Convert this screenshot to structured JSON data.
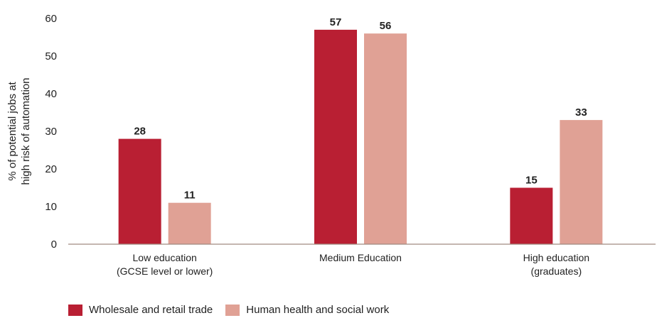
{
  "chart_data": {
    "type": "bar",
    "categories": [
      [
        "Low education",
        "(GCSE level or lower)"
      ],
      [
        "Medium Education"
      ],
      [
        "High education",
        "(graduates)"
      ]
    ],
    "series": [
      {
        "name": "Wholesale and retail trade",
        "color": "#b91f33",
        "values": [
          28,
          57,
          15
        ]
      },
      {
        "name": "Human health and social work",
        "color": "#e0a195",
        "values": [
          11,
          56,
          33
        ]
      }
    ],
    "ylabel": [
      "% of potential jobs at",
      "high risk of automation"
    ],
    "yticks": [
      0,
      10,
      20,
      30,
      40,
      50,
      60
    ],
    "ylim": [
      0,
      60
    ],
    "grid": false,
    "legend_position": "bottom-left"
  }
}
